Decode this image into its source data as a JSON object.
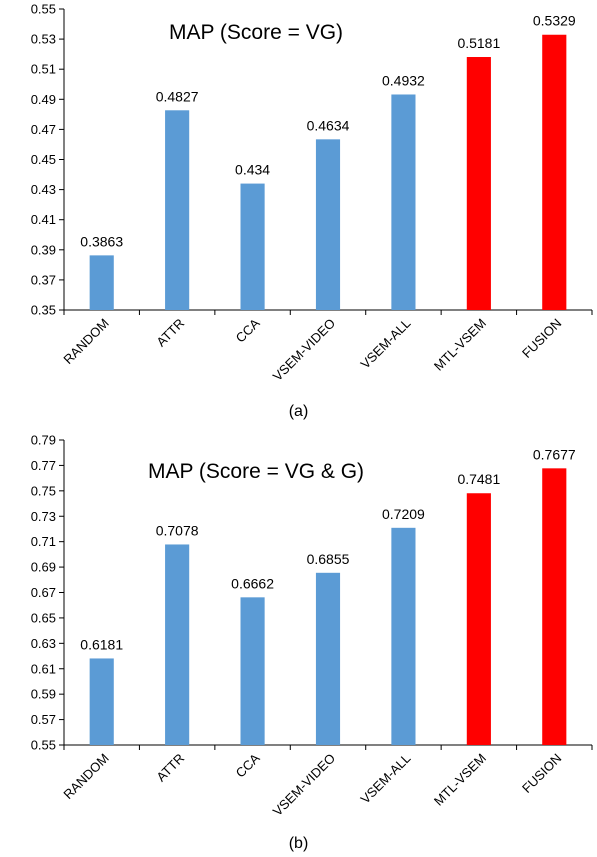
{
  "chart_data": [
    {
      "type": "bar",
      "title": "MAP (Score = VG)",
      "caption": "(a)",
      "categories": [
        "RANDOM",
        "ATTR",
        "CCA",
        "VSEM-VIDEO",
        "VSEM-ALL",
        "MTL-VSEM",
        "FUSION"
      ],
      "values": [
        0.3863,
        0.4827,
        0.434,
        0.4634,
        0.4932,
        0.5181,
        0.5329
      ],
      "value_labels": [
        "0.3863",
        "0.4827",
        "0.434",
        "0.4634",
        "0.4932",
        "0.5181",
        "0.5329"
      ],
      "bar_colors": [
        "#5b9bd5",
        "#5b9bd5",
        "#5b9bd5",
        "#5b9bd5",
        "#5b9bd5",
        "#ff0000",
        "#ff0000"
      ],
      "ylim": [
        0.35,
        0.55
      ],
      "yticks": [
        "0.35",
        "0.37",
        "0.39",
        "0.41",
        "0.43",
        "0.45",
        "0.47",
        "0.49",
        "0.51",
        "0.53",
        "0.55"
      ],
      "grid": false,
      "xlabel": "",
      "ylabel": ""
    },
    {
      "type": "bar",
      "title": "MAP (Score = VG & G)",
      "caption": "(b)",
      "categories": [
        "RANDOM",
        "ATTR",
        "CCA",
        "VSEM-VIDEO",
        "VSEM-ALL",
        "MTL-VSEM",
        "FUSION"
      ],
      "values": [
        0.6181,
        0.7078,
        0.6662,
        0.6855,
        0.7209,
        0.7481,
        0.7677
      ],
      "value_labels": [
        "0.6181",
        "0.7078",
        "0.6662",
        "0.6855",
        "0.7209",
        "0.7481",
        "0.7677"
      ],
      "bar_colors": [
        "#5b9bd5",
        "#5b9bd5",
        "#5b9bd5",
        "#5b9bd5",
        "#5b9bd5",
        "#ff0000",
        "#ff0000"
      ],
      "ylim": [
        0.55,
        0.79
      ],
      "yticks": [
        "0.55",
        "0.57",
        "0.59",
        "0.61",
        "0.63",
        "0.65",
        "0.67",
        "0.69",
        "0.71",
        "0.73",
        "0.75",
        "0.77",
        "0.79"
      ],
      "grid": false,
      "xlabel": "",
      "ylabel": ""
    }
  ]
}
